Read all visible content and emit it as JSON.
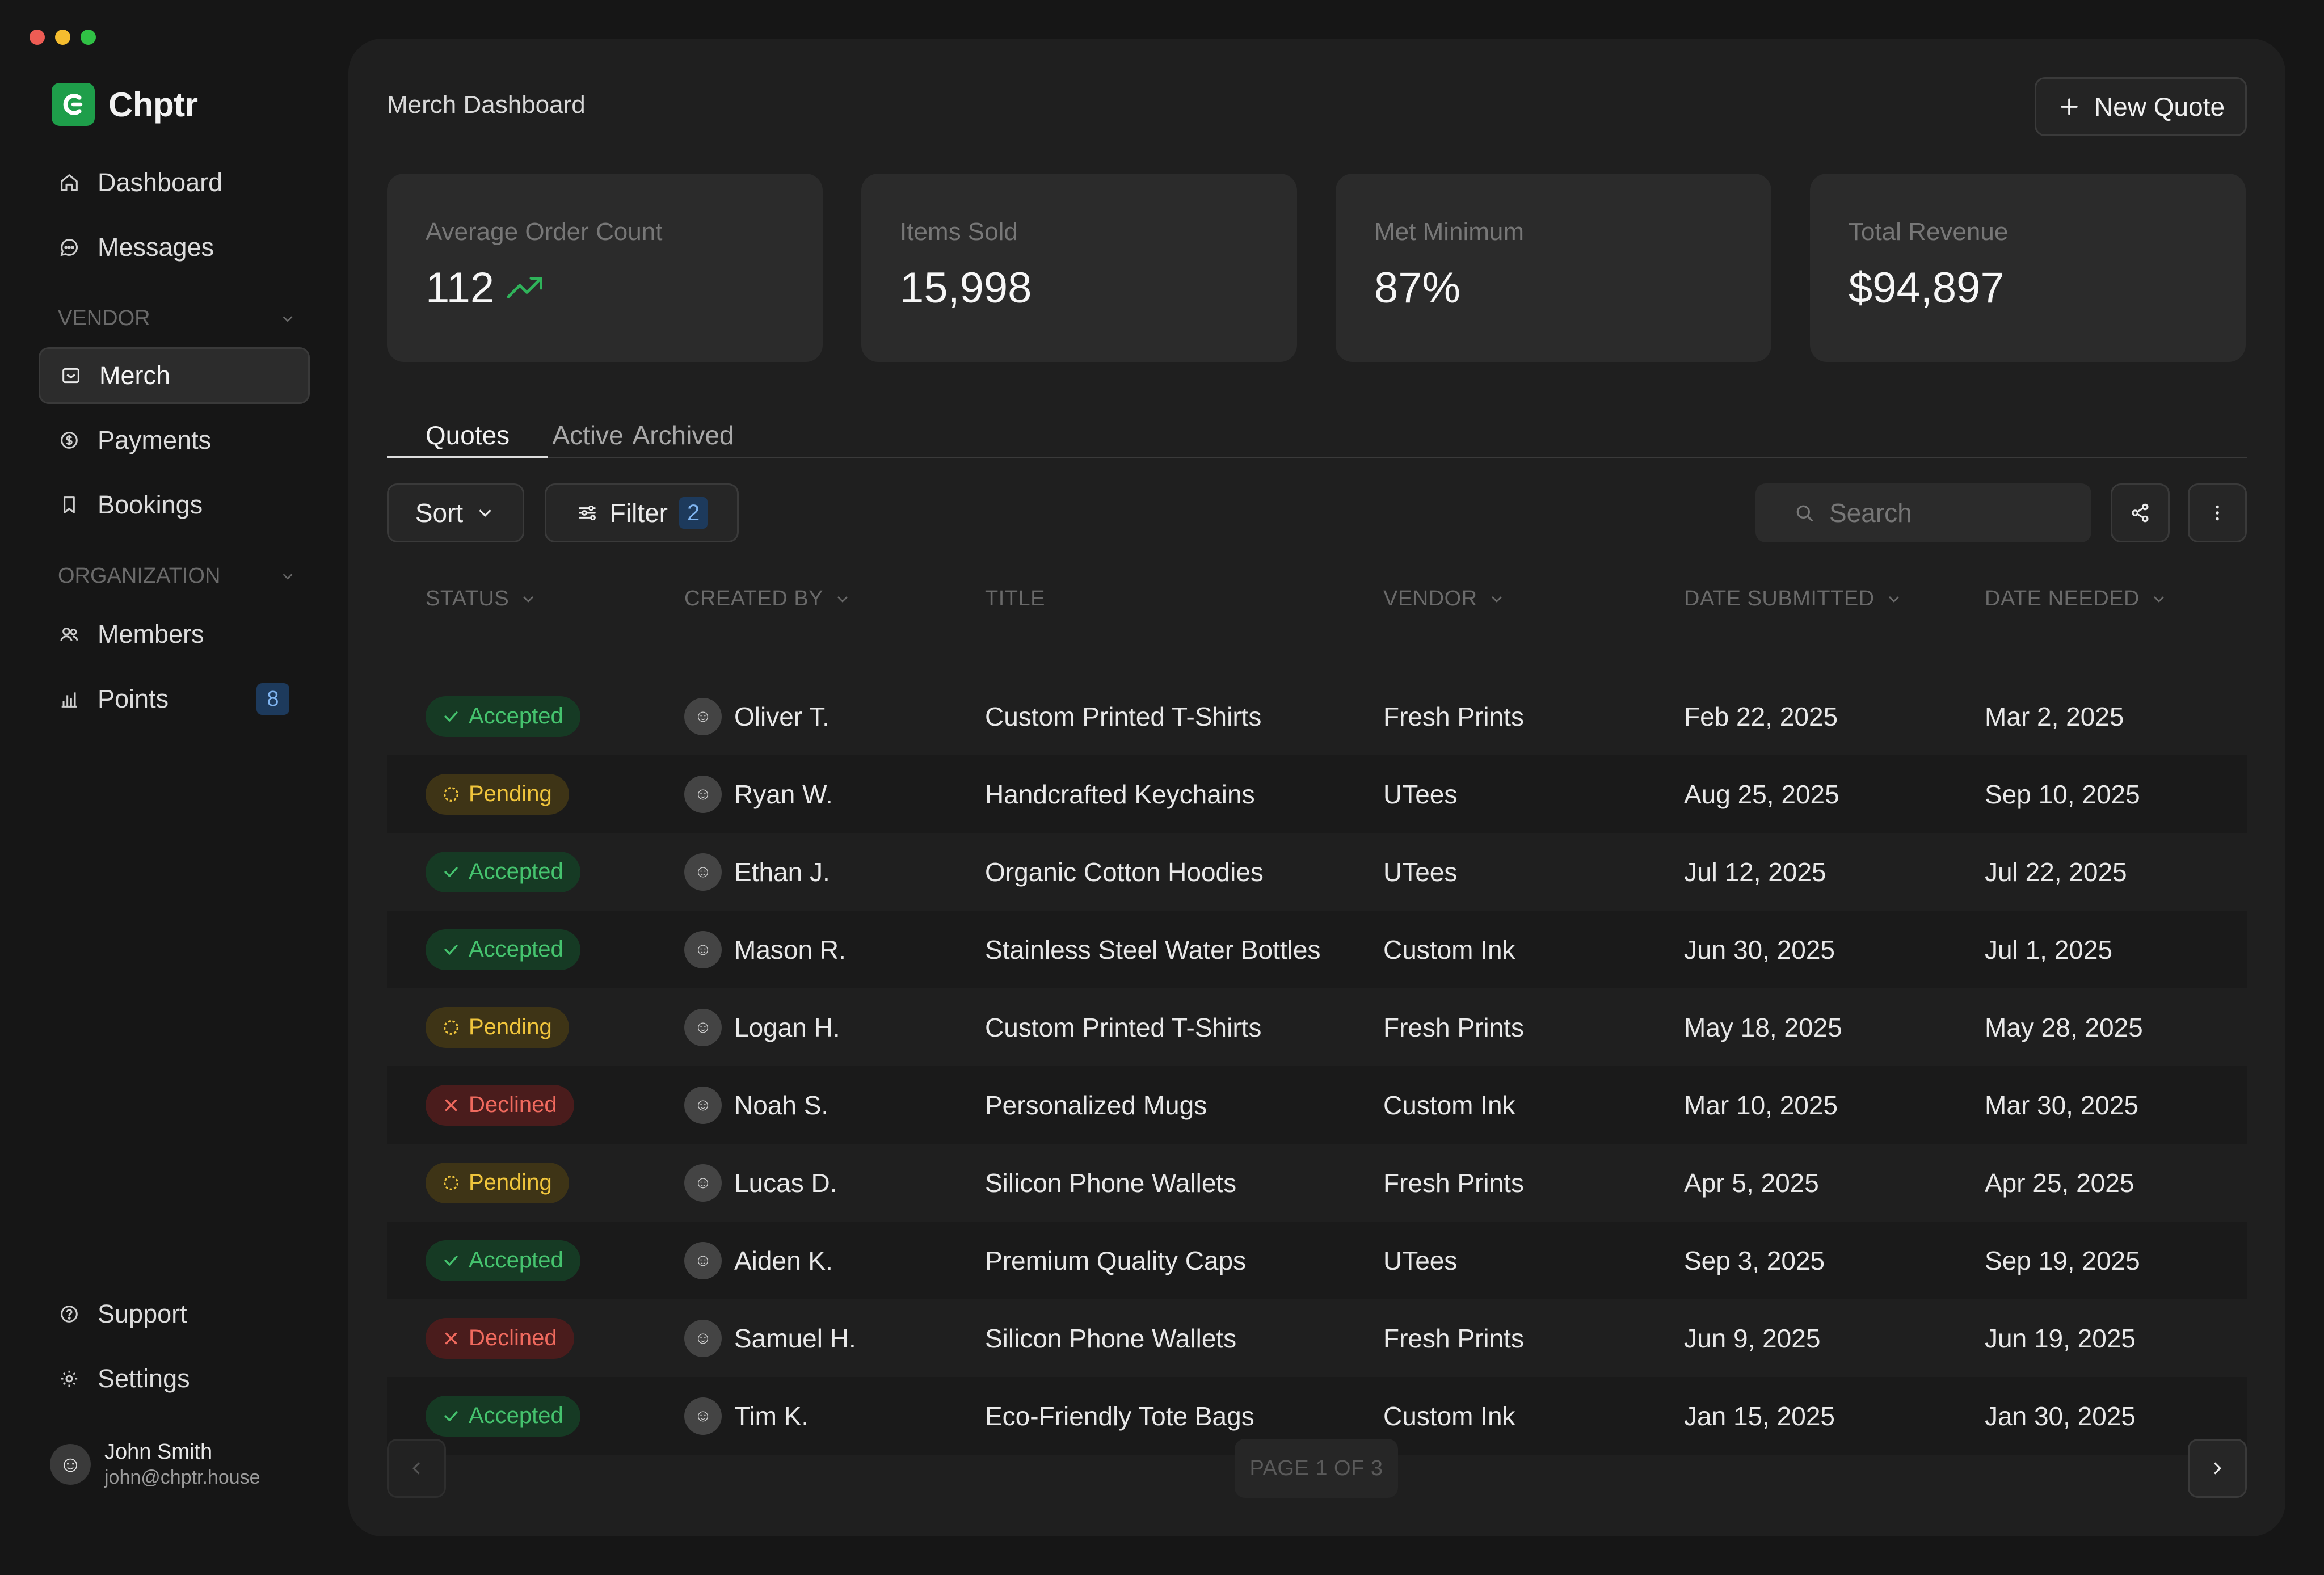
{
  "app": {
    "name": "Chptr"
  },
  "sidebar": {
    "items": [
      {
        "label": "Dashboard"
      },
      {
        "label": "Messages"
      }
    ],
    "vendor_section": "VENDOR",
    "vendor_items": [
      {
        "label": "Merch"
      },
      {
        "label": "Payments"
      },
      {
        "label": "Bookings"
      }
    ],
    "org_section": "ORGANIZATION",
    "org_items": [
      {
        "label": "Members"
      },
      {
        "label": "Points",
        "badge": "8"
      }
    ],
    "bottom_items": [
      {
        "label": "Support"
      },
      {
        "label": "Settings"
      }
    ],
    "user": {
      "name": "John Smith",
      "email": "john@chptr.house"
    }
  },
  "header": {
    "title": "Merch Dashboard",
    "new_quote": "New Quote"
  },
  "stats": [
    {
      "label": "Average Order Count",
      "value": "112"
    },
    {
      "label": "Items Sold",
      "value": "15,998"
    },
    {
      "label": "Met Minimum",
      "value": "87%"
    },
    {
      "label": "Total Revenue",
      "value": "$94,897"
    }
  ],
  "tabs": [
    {
      "label": "Quotes"
    },
    {
      "label": "Active"
    },
    {
      "label": "Archived"
    }
  ],
  "toolbar": {
    "sort": "Sort",
    "filter": "Filter",
    "filter_count": "2",
    "search_placeholder": "Search"
  },
  "table": {
    "columns": [
      "STATUS",
      "CREATED BY",
      "TITLE",
      "VENDOR",
      "DATE SUBMITTED",
      "DATE NEEDED"
    ],
    "rows": [
      {
        "status": "Accepted",
        "created_by": "Oliver T.",
        "title": "Custom Printed T-Shirts",
        "vendor": "Fresh Prints",
        "submitted": "Feb 22, 2025",
        "needed": "Mar 2, 2025"
      },
      {
        "status": "Pending",
        "created_by": "Ryan W.",
        "title": "Handcrafted Keychains",
        "vendor": "UTees",
        "submitted": "Aug 25, 2025",
        "needed": "Sep 10, 2025"
      },
      {
        "status": "Accepted",
        "created_by": "Ethan J.",
        "title": "Organic Cotton Hoodies",
        "vendor": "UTees",
        "submitted": "Jul 12, 2025",
        "needed": "Jul 22, 2025"
      },
      {
        "status": "Accepted",
        "created_by": "Mason R.",
        "title": "Stainless Steel Water Bottles",
        "vendor": "Custom Ink",
        "submitted": "Jun 30, 2025",
        "needed": "Jul 1,  2025"
      },
      {
        "status": "Pending",
        "created_by": "Logan H.",
        "title": "Custom Printed T-Shirts",
        "vendor": "Fresh Prints",
        "submitted": "May 18, 2025",
        "needed": "May 28, 2025"
      },
      {
        "status": "Declined",
        "created_by": "Noah S.",
        "title": "Personalized Mugs",
        "vendor": "Custom Ink",
        "submitted": "Mar 10, 2025",
        "needed": "Mar 30, 2025"
      },
      {
        "status": "Pending",
        "created_by": "Lucas D.",
        "title": "Silicon Phone Wallets",
        "vendor": "Fresh Prints",
        "submitted": "Apr 5, 2025",
        "needed": "Apr 25, 2025"
      },
      {
        "status": "Accepted",
        "created_by": "Aiden K.",
        "title": "Premium Quality Caps",
        "vendor": "UTees",
        "submitted": "Sep 3, 2025",
        "needed": "Sep 19, 2025"
      },
      {
        "status": "Declined",
        "created_by": "Samuel H.",
        "title": "Silicon Phone Wallets",
        "vendor": "Fresh Prints",
        "submitted": "Jun 9, 2025",
        "needed": "Jun 19, 2025"
      },
      {
        "status": "Accepted",
        "created_by": "Tim K.",
        "title": "Eco-Friendly Tote Bags",
        "vendor": "Custom Ink",
        "submitted": "Jan 15, 2025",
        "needed": "Jan 30, 2025"
      }
    ]
  },
  "pagination": {
    "label": "PAGE 1 OF 3"
  },
  "colors": {
    "accent": "#1e9e4a",
    "accepted": "#45c36e",
    "pending": "#f0c53c",
    "declined": "#f06a5e",
    "trend": "#2fb35a"
  }
}
